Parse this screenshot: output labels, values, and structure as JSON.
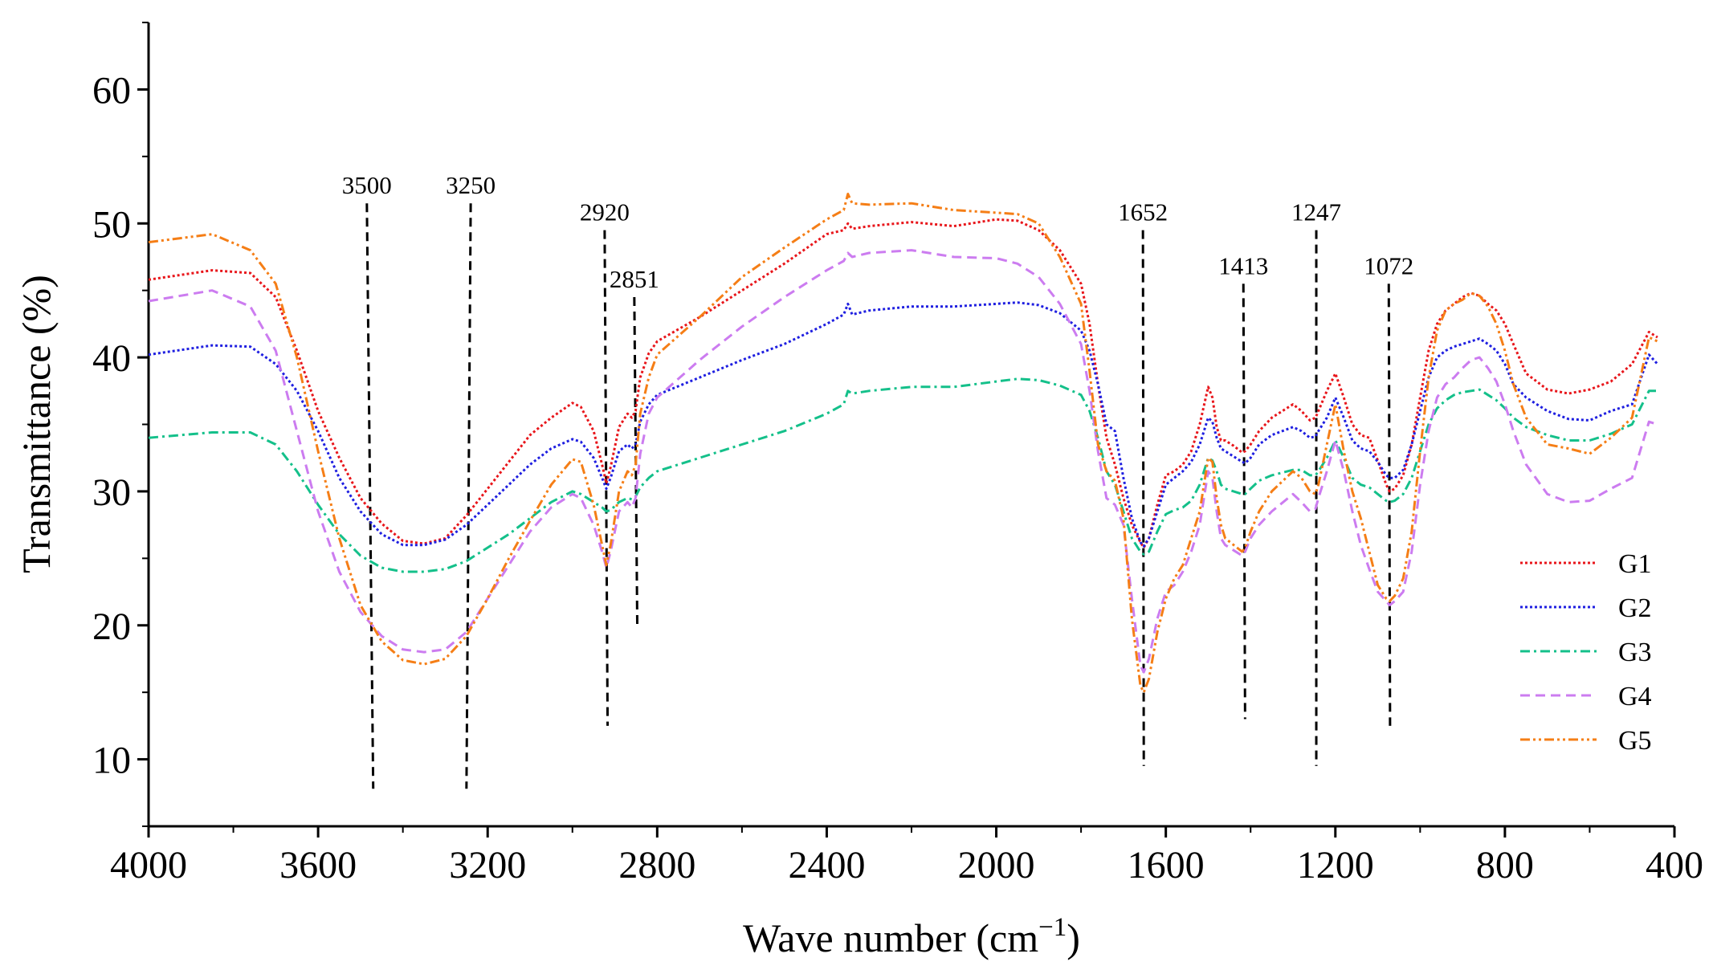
{
  "chart_data": {
    "type": "line",
    "title": "",
    "xlabel": "Wave number (cm",
    "xlabel_sup": "−1",
    "xlabel_close": ")",
    "ylabel": "Transmittance (%)",
    "xlim": [
      4000,
      400
    ],
    "ylim": [
      5,
      65
    ],
    "x_reversed": true,
    "x_ticks": [
      4000,
      3600,
      3200,
      2800,
      2400,
      2000,
      1600,
      1200,
      800,
      400
    ],
    "y_ticks": [
      10,
      20,
      30,
      40,
      50,
      60
    ],
    "grid": false,
    "legend_position": "bottom-right",
    "series": [
      {
        "name": "G1",
        "color": "#e8161b",
        "dash": "dot",
        "x": [
          4000,
          3850,
          3760,
          3700,
          3650,
          3600,
          3550,
          3500,
          3450,
          3400,
          3350,
          3300,
          3250,
          3200,
          3150,
          3100,
          3050,
          3000,
          2980,
          2950,
          2930,
          2920,
          2910,
          2890,
          2870,
          2860,
          2851,
          2840,
          2820,
          2800,
          2700,
          2600,
          2500,
          2400,
          2360,
          2350,
          2340,
          2300,
          2200,
          2100,
          2000,
          1950,
          1900,
          1850,
          1800,
          1780,
          1760,
          1740,
          1720,
          1700,
          1680,
          1660,
          1652,
          1640,
          1620,
          1600,
          1580,
          1560,
          1540,
          1520,
          1500,
          1490,
          1480,
          1470,
          1460,
          1440,
          1420,
          1413,
          1400,
          1380,
          1350,
          1300,
          1280,
          1260,
          1247,
          1240,
          1220,
          1200,
          1180,
          1160,
          1140,
          1120,
          1100,
          1080,
          1072,
          1060,
          1040,
          1020,
          1000,
          980,
          960,
          940,
          920,
          900,
          880,
          860,
          840,
          820,
          800,
          780,
          750,
          700,
          650,
          600,
          550,
          500,
          460,
          440
        ],
        "y": [
          45.8,
          46.5,
          46.3,
          44.5,
          40.5,
          36,
          32.5,
          29.5,
          27.6,
          26.3,
          26.1,
          26.5,
          28.2,
          30.2,
          32.2,
          34.2,
          35.5,
          36.6,
          36.3,
          34.5,
          32,
          30.6,
          31.8,
          34.8,
          35.8,
          35.5,
          36,
          38.5,
          40.3,
          41.2,
          43,
          45,
          47,
          49.2,
          49.5,
          50,
          49.6,
          49.8,
          50.1,
          49.8,
          50.3,
          50.2,
          49.5,
          48,
          45.5,
          42.5,
          38,
          34,
          32,
          29.5,
          27.5,
          26.2,
          25.8,
          26.5,
          29,
          31.2,
          31.5,
          32,
          33,
          35,
          37.8,
          37,
          34.8,
          33.8,
          33.8,
          33.4,
          32.9,
          33,
          33.5,
          34.5,
          35.5,
          36.5,
          36,
          35.3,
          35.5,
          36,
          37.5,
          38.8,
          37,
          35,
          34.2,
          34,
          32.3,
          30.5,
          30,
          30.2,
          31.2,
          33.5,
          37,
          40.5,
          42.5,
          43.5,
          44,
          44.5,
          44.8,
          44.6,
          44,
          43.5,
          42.5,
          41,
          38.8,
          37.6,
          37.3,
          37.6,
          38.2,
          39.5,
          41.9,
          41.5
        ]
      },
      {
        "name": "G2",
        "color": "#1f1fe0",
        "dash": "dot",
        "x": [
          4000,
          3850,
          3760,
          3700,
          3650,
          3600,
          3550,
          3500,
          3450,
          3400,
          3350,
          3300,
          3250,
          3200,
          3150,
          3100,
          3050,
          3000,
          2980,
          2950,
          2930,
          2920,
          2910,
          2890,
          2870,
          2860,
          2851,
          2840,
          2820,
          2800,
          2700,
          2600,
          2500,
          2400,
          2360,
          2350,
          2340,
          2300,
          2200,
          2100,
          2000,
          1950,
          1900,
          1850,
          1800,
          1780,
          1760,
          1740,
          1720,
          1700,
          1680,
          1660,
          1652,
          1640,
          1620,
          1600,
          1580,
          1560,
          1540,
          1520,
          1500,
          1490,
          1480,
          1470,
          1460,
          1440,
          1420,
          1413,
          1400,
          1380,
          1350,
          1300,
          1280,
          1260,
          1247,
          1240,
          1220,
          1200,
          1180,
          1160,
          1140,
          1120,
          1100,
          1080,
          1072,
          1060,
          1040,
          1020,
          1000,
          980,
          960,
          940,
          920,
          900,
          880,
          860,
          840,
          820,
          800,
          780,
          750,
          700,
          650,
          600,
          550,
          500,
          460,
          440
        ],
        "y": [
          40.2,
          40.9,
          40.8,
          39.5,
          37.5,
          34.5,
          31,
          28.5,
          26.8,
          26,
          26,
          26.4,
          27.5,
          29,
          30.5,
          32,
          33.2,
          33.9,
          33.7,
          32.5,
          31,
          30.2,
          31,
          33,
          33.5,
          33.2,
          33.5,
          35.2,
          36.5,
          37.2,
          38.5,
          39.8,
          41,
          42.5,
          43.2,
          44,
          43.2,
          43.5,
          43.8,
          43.8,
          44,
          44.1,
          43.9,
          43.3,
          42,
          40.5,
          38,
          35,
          34.5,
          31,
          28,
          26.2,
          25.9,
          26.5,
          28.5,
          30.5,
          31,
          31.5,
          32.2,
          33.5,
          35.5,
          35.2,
          34,
          33.2,
          33,
          32.6,
          32.2,
          32.1,
          32.5,
          33.5,
          34.2,
          34.8,
          34.5,
          34,
          34.1,
          34.5,
          35.5,
          37,
          35.5,
          33.8,
          33.2,
          33,
          32.2,
          31.2,
          31,
          31,
          31.6,
          33.5,
          36,
          38.5,
          40,
          40.5,
          40.8,
          41,
          41.2,
          41.4,
          41,
          40.5,
          39.5,
          38,
          37,
          36,
          35.4,
          35.3,
          36,
          36.5,
          40.2,
          39.5
        ]
      },
      {
        "name": "G3",
        "color": "#14c08a",
        "dash": "dashdot",
        "x": [
          4000,
          3850,
          3760,
          3700,
          3650,
          3600,
          3550,
          3500,
          3450,
          3400,
          3350,
          3300,
          3250,
          3200,
          3150,
          3100,
          3050,
          3000,
          2980,
          2950,
          2930,
          2920,
          2910,
          2890,
          2870,
          2860,
          2851,
          2840,
          2820,
          2800,
          2700,
          2600,
          2500,
          2400,
          2360,
          2350,
          2340,
          2300,
          2200,
          2100,
          2000,
          1950,
          1900,
          1850,
          1800,
          1780,
          1760,
          1740,
          1720,
          1700,
          1680,
          1660,
          1652,
          1640,
          1620,
          1600,
          1580,
          1560,
          1540,
          1520,
          1500,
          1490,
          1480,
          1470,
          1460,
          1440,
          1420,
          1413,
          1400,
          1380,
          1350,
          1300,
          1280,
          1260,
          1247,
          1240,
          1220,
          1200,
          1180,
          1160,
          1140,
          1120,
          1100,
          1080,
          1072,
          1060,
          1040,
          1020,
          1000,
          980,
          960,
          940,
          920,
          900,
          880,
          860,
          840,
          820,
          800,
          780,
          750,
          700,
          650,
          600,
          550,
          500,
          460,
          440
        ],
        "y": [
          34,
          34.4,
          34.4,
          33.5,
          31.5,
          29,
          26.8,
          25.2,
          24.3,
          24,
          24,
          24.2,
          24.8,
          25.8,
          26.8,
          28,
          29.2,
          30,
          29.8,
          29.2,
          28.8,
          28.5,
          28.6,
          29.2,
          29.5,
          29.4,
          29.6,
          30.3,
          31,
          31.5,
          32.5,
          33.5,
          34.5,
          35.8,
          36.5,
          37.5,
          37.3,
          37.5,
          37.8,
          37.8,
          38.2,
          38.4,
          38.3,
          37.9,
          37.2,
          36,
          34,
          31.5,
          30.5,
          28.5,
          26.5,
          25.5,
          25.3,
          25.5,
          27,
          28.3,
          28.6,
          28.8,
          29.3,
          30.5,
          32.5,
          32.3,
          31.5,
          30.5,
          30.2,
          30,
          29.8,
          29.8,
          30.2,
          30.8,
          31.2,
          31.6,
          31.6,
          31.2,
          31.2,
          31.5,
          32.5,
          33.8,
          32.5,
          31,
          30.5,
          30.3,
          29.8,
          29.3,
          29.2,
          29.3,
          29.8,
          31,
          33,
          35,
          36.2,
          36.8,
          37.2,
          37.4,
          37.5,
          37.6,
          37.2,
          36.8,
          36.2,
          35.5,
          34.8,
          34.2,
          33.8,
          33.8,
          34.3,
          35,
          37.5,
          37.5
        ]
      },
      {
        "name": "G4",
        "color": "#cc7cf0",
        "dash": "dash",
        "x": [
          4000,
          3850,
          3760,
          3700,
          3650,
          3600,
          3550,
          3500,
          3450,
          3400,
          3350,
          3300,
          3250,
          3200,
          3150,
          3100,
          3050,
          3000,
          2980,
          2950,
          2930,
          2920,
          2910,
          2890,
          2870,
          2860,
          2851,
          2840,
          2820,
          2800,
          2700,
          2600,
          2500,
          2400,
          2360,
          2350,
          2340,
          2300,
          2200,
          2100,
          2000,
          1950,
          1900,
          1850,
          1800,
          1780,
          1760,
          1740,
          1720,
          1700,
          1680,
          1660,
          1652,
          1640,
          1620,
          1600,
          1580,
          1560,
          1540,
          1520,
          1500,
          1490,
          1480,
          1470,
          1460,
          1440,
          1420,
          1413,
          1400,
          1380,
          1350,
          1300,
          1280,
          1260,
          1247,
          1240,
          1220,
          1200,
          1180,
          1160,
          1140,
          1120,
          1100,
          1080,
          1072,
          1060,
          1040,
          1020,
          1000,
          980,
          960,
          940,
          920,
          900,
          880,
          860,
          840,
          820,
          800,
          780,
          750,
          700,
          650,
          600,
          550,
          500,
          460,
          440
        ],
        "y": [
          44.2,
          45,
          43.8,
          40.5,
          34.5,
          28.5,
          24,
          21,
          19.2,
          18.2,
          18,
          18.2,
          19.5,
          22,
          24.5,
          27,
          28.8,
          29.8,
          29.5,
          27.5,
          25.5,
          24.3,
          25.5,
          28.5,
          29.2,
          28.8,
          29.5,
          32.8,
          35.8,
          37,
          39.8,
          42.3,
          44.5,
          46.5,
          47.2,
          47.8,
          47.5,
          47.8,
          48,
          47.5,
          47.4,
          47,
          46,
          44,
          41,
          37.5,
          33,
          29.5,
          29,
          27.5,
          22,
          17,
          16.5,
          17.5,
          20.5,
          22.5,
          23,
          24,
          25.5,
          27.5,
          31.5,
          31,
          28.5,
          26.5,
          26,
          25.6,
          25.2,
          25.5,
          26.5,
          27.5,
          28.5,
          29.8,
          29.2,
          28.5,
          28.7,
          29.5,
          31.5,
          33.8,
          31.5,
          28.5,
          26,
          24.2,
          22.5,
          21.8,
          21.5,
          21.8,
          22.5,
          25.5,
          30.5,
          34.5,
          37,
          38,
          38.5,
          39.2,
          39.8,
          40,
          39.2,
          38.2,
          36.5,
          34.5,
          32,
          29.8,
          29.2,
          29.3,
          30.2,
          31,
          35.2,
          35
        ]
      },
      {
        "name": "G5",
        "color": "#f57e16",
        "dash": "dashdotdot",
        "x": [
          4000,
          3850,
          3760,
          3700,
          3650,
          3600,
          3550,
          3500,
          3450,
          3400,
          3350,
          3300,
          3250,
          3200,
          3150,
          3100,
          3050,
          3000,
          2980,
          2950,
          2930,
          2920,
          2910,
          2890,
          2870,
          2860,
          2851,
          2840,
          2820,
          2800,
          2700,
          2600,
          2500,
          2400,
          2360,
          2350,
          2340,
          2300,
          2200,
          2100,
          2000,
          1950,
          1900,
          1850,
          1800,
          1780,
          1760,
          1740,
          1720,
          1700,
          1680,
          1660,
          1652,
          1640,
          1620,
          1600,
          1580,
          1560,
          1540,
          1520,
          1500,
          1490,
          1480,
          1470,
          1460,
          1440,
          1420,
          1413,
          1400,
          1380,
          1350,
          1300,
          1280,
          1260,
          1247,
          1240,
          1220,
          1200,
          1180,
          1160,
          1140,
          1120,
          1100,
          1080,
          1072,
          1060,
          1040,
          1020,
          1000,
          980,
          960,
          940,
          920,
          900,
          880,
          860,
          840,
          820,
          800,
          780,
          750,
          700,
          650,
          600,
          550,
          500,
          460,
          440
        ],
        "y": [
          48.6,
          49.2,
          48,
          45.5,
          40,
          33,
          26.5,
          21.5,
          18.8,
          17.4,
          17.1,
          17.5,
          19.2,
          22,
          25,
          27.8,
          30.5,
          32.4,
          32.2,
          29,
          26,
          24.5,
          26,
          30,
          31.5,
          31.2,
          32,
          35.8,
          38.5,
          40.2,
          43,
          46,
          48.2,
          50.3,
          51,
          52.2,
          51.5,
          51.4,
          51.5,
          51,
          50.8,
          50.7,
          50,
          47.5,
          44,
          39,
          33.5,
          31.5,
          30.8,
          28,
          20.5,
          15.5,
          15,
          16,
          19.5,
          22,
          23.5,
          24.5,
          26.5,
          28.5,
          32.5,
          32.2,
          29.5,
          27.5,
          26.5,
          26,
          25.5,
          25.8,
          27,
          28.5,
          30,
          31.5,
          31,
          30,
          29.8,
          30.5,
          33.5,
          36.5,
          33,
          30,
          28,
          25.5,
          23,
          22,
          21.8,
          22.2,
          23.5,
          27,
          33,
          38.5,
          42,
          43.5,
          44,
          44.3,
          44.8,
          44.6,
          43.8,
          42.5,
          40.5,
          38,
          35.5,
          33.5,
          33.2,
          32.8,
          34,
          35.5,
          41.5,
          41.2
        ]
      }
    ],
    "annotations": [
      {
        "label": "3500",
        "x_top": 3485,
        "x_bottom": 3470,
        "y_top": 51.5,
        "y_bottom": 7.8
      },
      {
        "label": "3250",
        "x_top": 3240,
        "x_bottom": 3250,
        "y_top": 51.5,
        "y_bottom": 7.8
      },
      {
        "label": "2920",
        "x_top": 2924,
        "x_bottom": 2917,
        "y_top": 49.5,
        "y_bottom": 12.5
      },
      {
        "label": "2851",
        "x_top": 2854,
        "x_bottom": 2847,
        "y_top": 44.5,
        "y_bottom": 20
      },
      {
        "label": "1652",
        "x_top": 1654,
        "x_bottom": 1652,
        "y_top": 49.5,
        "y_bottom": 9.5
      },
      {
        "label": "1413",
        "x_top": 1417,
        "x_bottom": 1413,
        "y_top": 45.5,
        "y_bottom": 13
      },
      {
        "label": "1247",
        "x_top": 1245,
        "x_bottom": 1245,
        "y_top": 49.5,
        "y_bottom": 9.5
      },
      {
        "label": "1072",
        "x_top": 1074,
        "x_bottom": 1071,
        "y_top": 45.5,
        "y_bottom": 12.5
      }
    ]
  }
}
